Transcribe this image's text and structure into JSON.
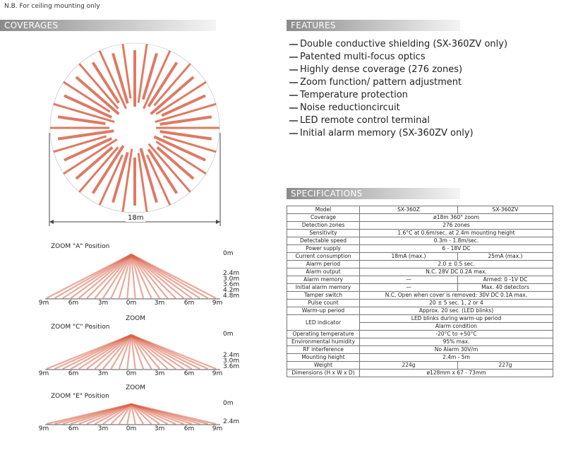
{
  "note": "N.B. For ceiling mounting only",
  "sections": {
    "coverages": "COVERAGES",
    "features": "FEATURES",
    "specifications": "SPECIFICATIONS"
  },
  "coverage_diagram": {
    "width_label": "18m",
    "beam_color": "#d9634a"
  },
  "features": [
    "Double conductive shielding (SX-360ZV only)",
    "Patented multi-focus optics",
    "Highly dense coverage (276 zones)",
    "Zoom function/ pattern adjustment",
    "Temperature protection",
    "Noise reductioncircuit",
    "LED remote control terminal",
    "Initial alarm memory (SX-360ZV only)"
  ],
  "zoom_panels": [
    {
      "title": "ZOOM \"A\" Position",
      "ranges": [
        "0m",
        "2.4m",
        "3.0m",
        "3.6m",
        "4.2m",
        "4.8m"
      ],
      "ticks": [
        "9m",
        "6m",
        "3m",
        "0m",
        "3m",
        "6m",
        "9m"
      ]
    },
    {
      "title": "ZOOM \"C\" Position",
      "ranges": [
        "0m",
        "2.4m",
        "3.0m",
        "3.6m"
      ],
      "ticks": [
        "9m",
        "6m",
        "3m",
        "0m",
        "3m",
        "6m",
        "9m"
      ]
    },
    {
      "title": "ZOOM \"E\" Position",
      "ranges": [
        "0m",
        "2.4m"
      ],
      "ticks": [
        "9m",
        "6m",
        "3m",
        "0m",
        "3m",
        "6m",
        "9m"
      ]
    }
  ],
  "zoom_badges": [
    "ZOOM",
    "ZOOM"
  ],
  "spec_table": {
    "header": [
      "Model",
      "SX-360Z",
      "SX-360ZV"
    ],
    "rows": [
      {
        "label": "Coverage",
        "both": "ø18m 360° zoom"
      },
      {
        "label": "Detection zones",
        "both": "276 zones"
      },
      {
        "label": "Sensitivity",
        "both": "1.6°C at 0.6m/sec. at 2.4m mounting height"
      },
      {
        "label": "Detectable speed",
        "both": "0.3m - 1.8m/sec."
      },
      {
        "label": "Power supply",
        "both": "6 - 18V DC"
      },
      {
        "label": "Current consumption",
        "a": "18mA (max.)",
        "b": "25mA (max.)"
      },
      {
        "label": "Alarm period",
        "both": "2.0 ± 0.5 sec."
      },
      {
        "label": "Alarm output",
        "both": "N.C. 28V DC 0.2A max."
      },
      {
        "label": "Alarm memory",
        "a": "—",
        "b": "Armed: 0 -1V DC"
      },
      {
        "label": "Initial alarm memory",
        "a": "—",
        "b": "Max. 40 detectors"
      },
      {
        "label": "Tamper switch",
        "both": "N.C, Open when cover is removed: 30V DC 0.1A max."
      },
      {
        "label": "Pulse count",
        "both": "20 ± 5 sec. 1, 2 or 4"
      },
      {
        "label": "Warm-up period",
        "both": "Approx. 20 sec. (LED blinks)"
      },
      {
        "label": "LED indicator",
        "both": "LED blinks during warm-up period",
        "both2": "Alarm condition"
      },
      {
        "label": "Operating temperature",
        "both": "-20°C to +50°C"
      },
      {
        "label": "Environmental humidity",
        "both": "95% max."
      },
      {
        "label": "RF interference",
        "both": "No Alarm 30V/m"
      },
      {
        "label": "Mounting height",
        "both": "2.4m - 5m"
      },
      {
        "label": "Weight",
        "a": "224g",
        "b": "227g"
      },
      {
        "label": "Dimensions (H x W x D)",
        "both": "ø128mm x 67 - 73mm"
      }
    ]
  }
}
